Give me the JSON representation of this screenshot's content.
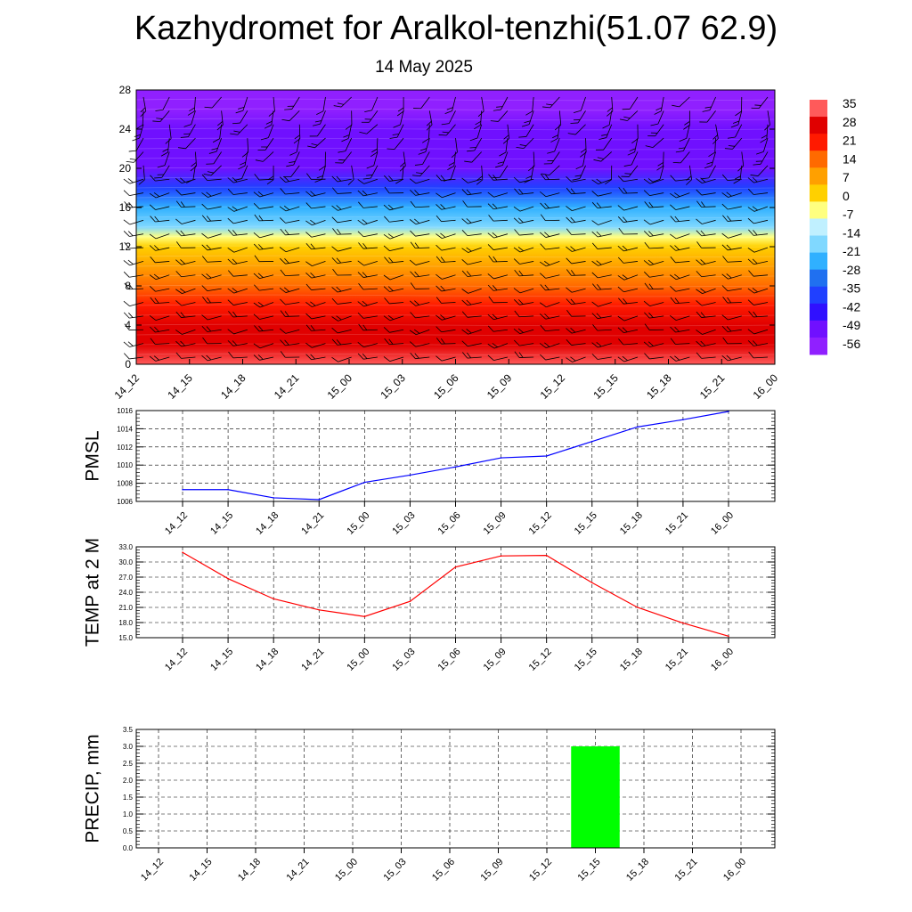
{
  "header": {
    "title": "Kazhydromet for Aralkol-tenzhi(51.07 62.9)",
    "date": "14 May 2025"
  },
  "time_labels": [
    "14_12",
    "14_15",
    "14_18",
    "14_21",
    "15_00",
    "15_03",
    "15_06",
    "15_09",
    "15_12",
    "15_15",
    "15_18",
    "15_21",
    "16_00"
  ],
  "colors": {
    "pmsl_line": "#0000ff",
    "temp_line": "#ff0000",
    "precip_bar": "#00ff00",
    "grid": "#000000"
  },
  "chart_data": [
    {
      "type": "heatmap",
      "title": "",
      "xlabel": "",
      "ylabel": "",
      "x": [
        "14_12",
        "14_15",
        "14_18",
        "14_21",
        "15_00",
        "15_03",
        "15_06",
        "15_09",
        "15_12",
        "15_15",
        "15_18",
        "15_21",
        "16_00"
      ],
      "yticks": [
        0,
        4,
        8,
        12,
        16,
        20,
        24,
        28
      ],
      "ylim": [
        0,
        28
      ],
      "profile": [
        {
          "y": 0,
          "value": 33
        },
        {
          "y": 2,
          "value": 31
        },
        {
          "y": 4,
          "value": 27
        },
        {
          "y": 6,
          "value": 23
        },
        {
          "y": 8,
          "value": 17
        },
        {
          "y": 10,
          "value": 10
        },
        {
          "y": 12,
          "value": 2
        },
        {
          "y": 13,
          "value": -10
        },
        {
          "y": 14,
          "value": -21
        },
        {
          "y": 16,
          "value": -30
        },
        {
          "y": 18,
          "value": -42
        },
        {
          "y": 20,
          "value": -55
        },
        {
          "y": 22,
          "value": -58
        },
        {
          "y": 24,
          "value": -56
        },
        {
          "y": 26,
          "value": -62
        },
        {
          "y": 28,
          "value": -66
        }
      ],
      "colorbar": {
        "labels": [
          "35",
          "28",
          "21",
          "14",
          "7",
          "0",
          "-7",
          "-14",
          "-21",
          "-28",
          "-35",
          "-42",
          "-49",
          "-56"
        ],
        "colors": [
          "#ff5a5a",
          "#e00000",
          "#ff1a00",
          "#ff6a00",
          "#ffa000",
          "#ffd000",
          "#ffff80",
          "#c0f0ff",
          "#80d8ff",
          "#30b0ff",
          "#2070f0",
          "#2040ff",
          "#3010ff",
          "#7010ff",
          "#9020ff"
        ]
      }
    },
    {
      "type": "line",
      "ylabel": "PMSL",
      "x": [
        "14_12",
        "14_15",
        "14_18",
        "14_21",
        "15_00",
        "15_03",
        "15_06",
        "15_09",
        "15_12",
        "15_15",
        "15_18",
        "15_21",
        "16_00"
      ],
      "series": [
        {
          "values": [
            1007.3,
            1007.3,
            1006.4,
            1006.2,
            1008.1,
            1008.9,
            1009.8,
            1010.8,
            1011.0,
            1012.6,
            1014.2,
            1015.0,
            1015.9
          ]
        }
      ],
      "ylim": [
        1006,
        1016
      ],
      "yticks": [
        "1006",
        "1008",
        "1010",
        "1012",
        "1014",
        "1016"
      ]
    },
    {
      "type": "line",
      "ylabel": "TEMP at 2 M",
      "x": [
        "14_12",
        "14_15",
        "14_18",
        "14_21",
        "15_00",
        "15_03",
        "15_06",
        "15_09",
        "15_12",
        "15_15",
        "15_18",
        "15_21",
        "16_00"
      ],
      "series": [
        {
          "values": [
            31.9,
            26.7,
            22.7,
            20.5,
            19.2,
            22.2,
            29.0,
            31.2,
            31.3,
            25.9,
            21.0,
            17.9,
            15.3
          ]
        }
      ],
      "ylim": [
        15,
        33
      ],
      "yticks": [
        "15.0",
        "18.0",
        "21.0",
        "24.0",
        "27.0",
        "30.0",
        "33.0"
      ]
    },
    {
      "type": "bar",
      "ylabel": "PRECIP, mm",
      "categories": [
        "14_12",
        "14_15",
        "14_18",
        "14_21",
        "15_00",
        "15_03",
        "15_06",
        "15_09",
        "15_12",
        "15_15",
        "15_18",
        "15_21",
        "16_00"
      ],
      "values": [
        0,
        0,
        0,
        0,
        0,
        0,
        0,
        0,
        0,
        3.0,
        0,
        0,
        0
      ],
      "ylim": [
        0,
        3.5
      ],
      "yticks": [
        "0.0",
        "0.5",
        "1.0",
        "1.5",
        "2.0",
        "2.5",
        "3.0",
        "3.5"
      ]
    }
  ]
}
